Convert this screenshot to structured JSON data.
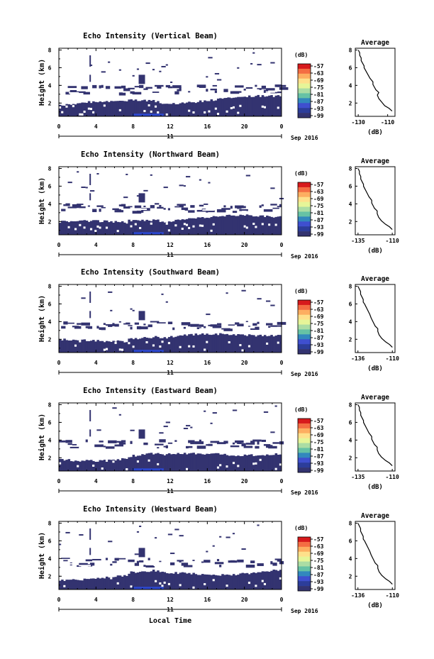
{
  "figure": {
    "x_axis_label": "Local Time",
    "date_label": "Sep 2016",
    "day_label": "11",
    "colorbar_unit": "(dB)",
    "average_title": "Average",
    "average_xlabel": "(dB)",
    "height_label": "Height (km)"
  },
  "colors": {
    "background_echo": "#333370",
    "weak_echo": "#2c48d0",
    "average_line": "#000000"
  },
  "chart_data": [
    {
      "type": "heatmap",
      "title": "Echo Intensity (Vertical Beam)",
      "ylabel": "Height (km)",
      "xlim": [
        0,
        24
      ],
      "ylim": [
        0.5,
        8.2
      ],
      "x_ticks": [
        "0",
        "4",
        "8",
        "12",
        "16",
        "20",
        "0"
      ],
      "y_ticks": [
        "2",
        "4",
        "6",
        "8"
      ],
      "colorbar": {
        "unit": "(dB)",
        "ticks": [
          "-57",
          "-63",
          "-69",
          "-75",
          "-81",
          "-87",
          "-93",
          "-99"
        ]
      },
      "profile": {
        "title": "Average",
        "xlabel": "(dB)",
        "xlim": [
          -132,
          -105
        ],
        "x_ticks": [
          "-130",
          "-110"
        ],
        "ylim": [
          0.5,
          8.2
        ],
        "y_ticks": [
          "2",
          "4",
          "6",
          "8"
        ],
        "x": [
          -107,
          -109,
          -112,
          -114,
          -116,
          -117,
          -116,
          -118,
          -119,
          -120,
          -120,
          -122,
          -123,
          -124,
          -125,
          -126,
          -126,
          -127,
          -128,
          -128,
          -129,
          -129,
          -130
        ],
        "y": [
          1.1,
          1.4,
          1.7,
          2.1,
          2.5,
          2.9,
          3.2,
          3.5,
          3.8,
          4.1,
          4.4,
          4.8,
          5.1,
          5.4,
          5.7,
          6.0,
          6.2,
          6.5,
          6.8,
          7.1,
          7.4,
          7.7,
          8.0
        ]
      }
    },
    {
      "type": "heatmap",
      "title": "Echo Intensity (Northward Beam)",
      "ylabel": "Height (km)",
      "xlim": [
        0,
        24
      ],
      "ylim": [
        0.5,
        8.2
      ],
      "x_ticks": [
        "0",
        "4",
        "8",
        "12",
        "16",
        "20",
        "0"
      ],
      "y_ticks": [
        "2",
        "4",
        "6",
        "8"
      ],
      "colorbar": {
        "unit": "(dB)",
        "ticks": [
          "-57",
          "-63",
          "-69",
          "-75",
          "-81",
          "-87",
          "-93",
          "-99"
        ]
      },
      "profile": {
        "title": "Average",
        "xlabel": "(dB)",
        "xlim": [
          -137,
          -108
        ],
        "x_ticks": [
          "-135",
          "-110"
        ],
        "ylim": [
          0.5,
          8.2
        ],
        "y_ticks": [
          "2",
          "4",
          "6",
          "8"
        ],
        "x": [
          -110,
          -112,
          -115,
          -118,
          -120,
          -121,
          -121,
          -123,
          -124,
          -125,
          -125,
          -127,
          -128,
          -129,
          -130,
          -131,
          -131,
          -132,
          -133,
          -133,
          -134,
          -134,
          -135
        ],
        "y": [
          1.1,
          1.4,
          1.7,
          2.1,
          2.5,
          2.9,
          3.2,
          3.5,
          3.8,
          4.1,
          4.4,
          4.8,
          5.1,
          5.4,
          5.7,
          6.0,
          6.2,
          6.5,
          6.8,
          7.1,
          7.4,
          7.7,
          8.0
        ]
      }
    },
    {
      "type": "heatmap",
      "title": "Echo Intensity (Southward Beam)",
      "ylabel": "Height (km)",
      "xlim": [
        0,
        24
      ],
      "ylim": [
        0.5,
        8.2
      ],
      "x_ticks": [
        "0",
        "4",
        "8",
        "12",
        "16",
        "20",
        "0"
      ],
      "y_ticks": [
        "2",
        "4",
        "6",
        "8"
      ],
      "colorbar": {
        "unit": "(dB)",
        "ticks": [
          "-57",
          "-63",
          "-69",
          "-75",
          "-81",
          "-87",
          "-93",
          "-99"
        ]
      },
      "profile": {
        "title": "Average",
        "xlabel": "(dB)",
        "xlim": [
          -138,
          -108
        ],
        "x_ticks": [
          "-136",
          "-110"
        ],
        "ylim": [
          0.5,
          8.2
        ],
        "y_ticks": [
          "2",
          "4",
          "6",
          "8"
        ],
        "x": [
          -110,
          -112,
          -115,
          -118,
          -120,
          -121,
          -121,
          -123,
          -124,
          -125,
          -126,
          -127,
          -128,
          -129,
          -130,
          -131,
          -132,
          -132,
          -133,
          -134,
          -134,
          -135,
          -136
        ],
        "y": [
          1.1,
          1.4,
          1.7,
          2.1,
          2.5,
          2.9,
          3.2,
          3.5,
          3.8,
          4.1,
          4.4,
          4.8,
          5.1,
          5.4,
          5.7,
          6.0,
          6.2,
          6.5,
          6.8,
          7.1,
          7.4,
          7.7,
          8.0
        ]
      }
    },
    {
      "type": "heatmap",
      "title": "Echo Intensity (Eastward Beam)",
      "ylabel": "Height (km)",
      "xlim": [
        0,
        24
      ],
      "ylim": [
        0.5,
        8.2
      ],
      "x_ticks": [
        "0",
        "4",
        "8",
        "12",
        "16",
        "20",
        "0"
      ],
      "y_ticks": [
        "2",
        "4",
        "6",
        "8"
      ],
      "colorbar": {
        "unit": "(dB)",
        "ticks": [
          "-57",
          "-63",
          "-69",
          "-75",
          "-81",
          "-87",
          "-93",
          "-99"
        ]
      },
      "profile": {
        "title": "Average",
        "xlabel": "(dB)",
        "xlim": [
          -137,
          -108
        ],
        "x_ticks": [
          "-135",
          "-110"
        ],
        "ylim": [
          0.5,
          8.2
        ],
        "y_ticks": [
          "2",
          "4",
          "6",
          "8"
        ],
        "x": [
          -110,
          -112,
          -115,
          -118,
          -120,
          -121,
          -121,
          -123,
          -124,
          -125,
          -125,
          -127,
          -128,
          -129,
          -130,
          -131,
          -131,
          -132,
          -133,
          -133,
          -134,
          -134,
          -135
        ],
        "y": [
          1.1,
          1.4,
          1.7,
          2.1,
          2.5,
          2.9,
          3.2,
          3.5,
          3.8,
          4.1,
          4.4,
          4.8,
          5.1,
          5.4,
          5.7,
          6.0,
          6.2,
          6.5,
          6.8,
          7.1,
          7.4,
          7.7,
          8.0
        ]
      }
    },
    {
      "type": "heatmap",
      "title": "Echo Intensity (Westward Beam)",
      "ylabel": "Height (km)",
      "xlim": [
        0,
        24
      ],
      "ylim": [
        0.5,
        8.2
      ],
      "x_ticks": [
        "0",
        "4",
        "8",
        "12",
        "16",
        "20",
        "0"
      ],
      "y_ticks": [
        "2",
        "4",
        "6",
        "8"
      ],
      "colorbar": {
        "unit": "(dB)",
        "ticks": [
          "-57",
          "-63",
          "-69",
          "-75",
          "-81",
          "-87",
          "-93",
          "-99"
        ]
      },
      "profile": {
        "title": "Average",
        "xlabel": "(dB)",
        "xlim": [
          -138,
          -108
        ],
        "x_ticks": [
          "-136",
          "-110"
        ],
        "ylim": [
          0.5,
          8.2
        ],
        "y_ticks": [
          "2",
          "4",
          "6",
          "8"
        ],
        "x": [
          -110,
          -112,
          -115,
          -118,
          -120,
          -121,
          -121,
          -123,
          -124,
          -125,
          -126,
          -127,
          -128,
          -129,
          -130,
          -131,
          -132,
          -132,
          -133,
          -134,
          -134,
          -135,
          -136
        ],
        "y": [
          1.1,
          1.4,
          1.7,
          2.1,
          2.5,
          2.9,
          3.2,
          3.5,
          3.8,
          4.1,
          4.4,
          4.8,
          5.1,
          5.4,
          5.7,
          6.0,
          6.2,
          6.5,
          6.8,
          7.1,
          7.4,
          7.7,
          8.0
        ]
      }
    }
  ]
}
